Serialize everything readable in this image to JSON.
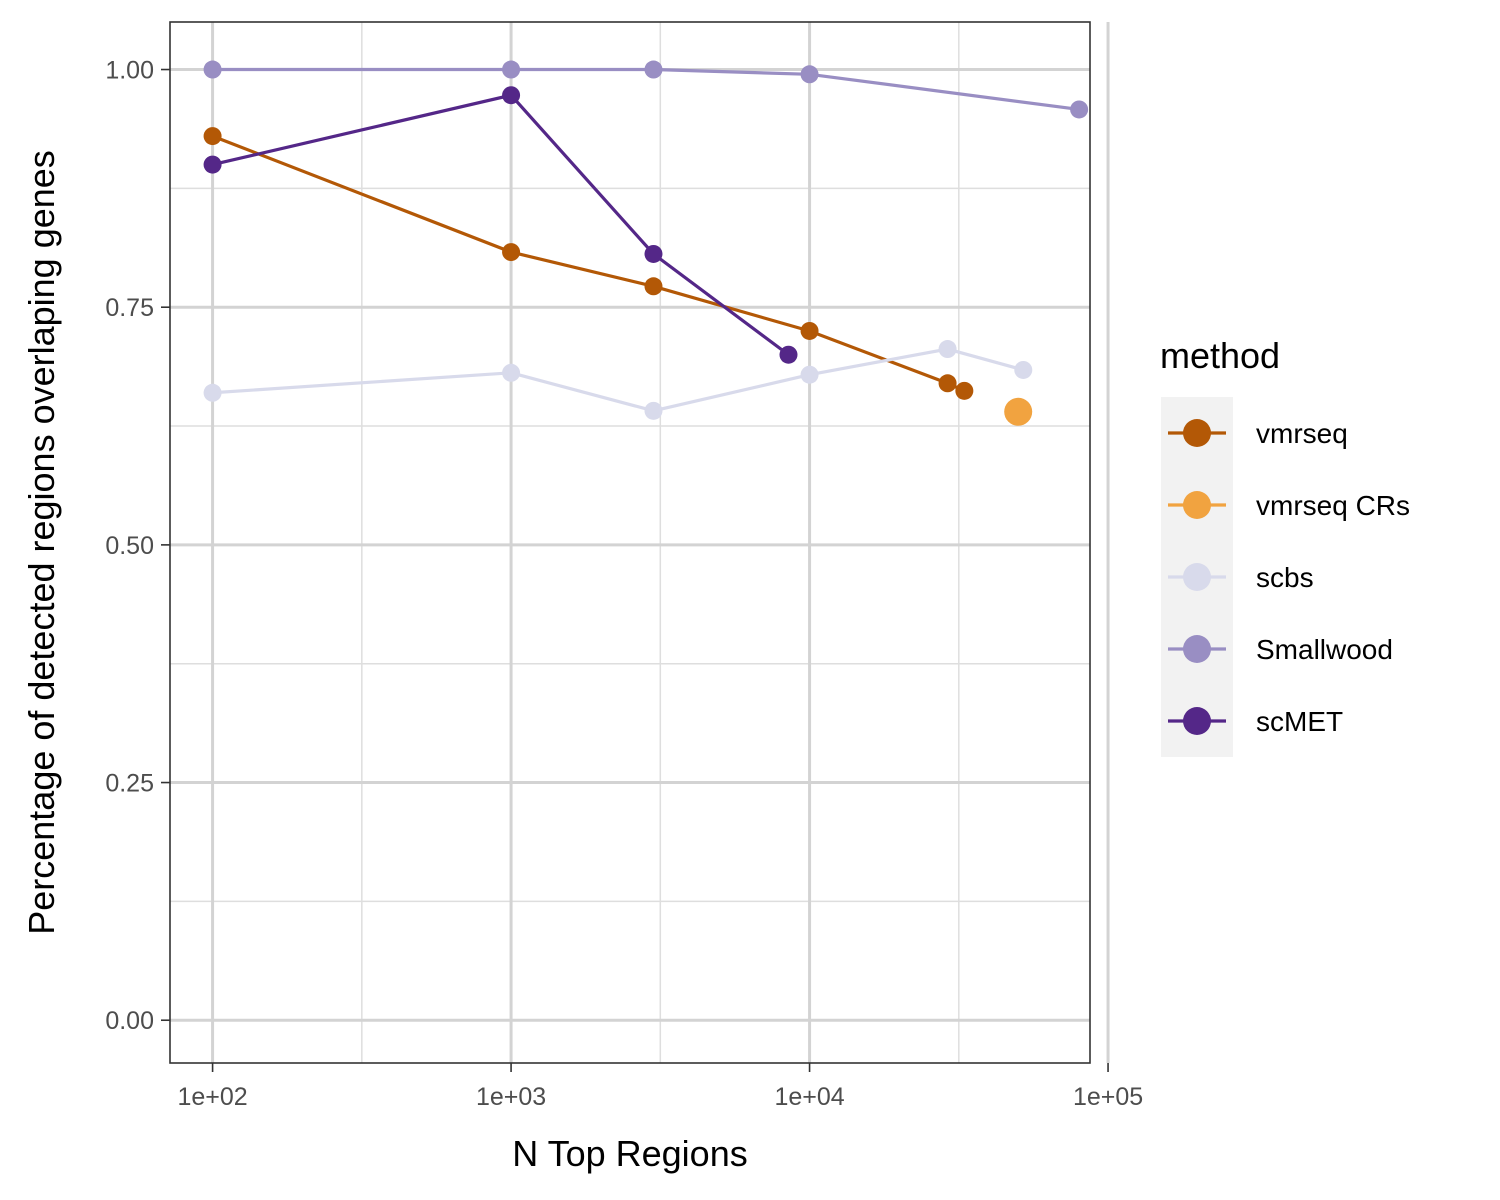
{
  "chart_data": {
    "type": "line",
    "xlabel": "N Top Regions",
    "ylabel": "Percentage of detected regions overlaping genes",
    "xscale": "log10",
    "xlim": [
      72,
      87000
    ],
    "ylim": [
      -0.045,
      1.05
    ],
    "x_ticks": [
      {
        "value": 100,
        "label": "1e+02"
      },
      {
        "value": 1000,
        "label": "1e+03"
      },
      {
        "value": 10000,
        "label": "1e+04"
      },
      {
        "value": 100000,
        "label": "1e+05"
      }
    ],
    "y_ticks": [
      {
        "value": 0.0,
        "label": "0.00"
      },
      {
        "value": 0.25,
        "label": "0.25"
      },
      {
        "value": 0.5,
        "label": "0.50"
      },
      {
        "value": 0.75,
        "label": "0.75"
      },
      {
        "value": 1.0,
        "label": "1.00"
      }
    ],
    "x_minor_ticks": [
      316.23,
      3162.28,
      31622.78
    ],
    "y_minor_ticks": [
      0.125,
      0.375,
      0.625,
      0.875
    ],
    "grid": true,
    "legend_position": "right",
    "legend_title": "method",
    "series": [
      {
        "name": "vmrseq",
        "color": "#b35806",
        "points": [
          [
            100,
            0.93
          ],
          [
            1000,
            0.808
          ],
          [
            3000,
            0.772
          ],
          [
            10000,
            0.725
          ],
          [
            29000,
            0.67
          ],
          [
            33000,
            0.662
          ]
        ]
      },
      {
        "name": "vmrseq CRs",
        "color": "#f1a340",
        "points": [
          [
            50000,
            0.64
          ]
        ],
        "large_marker": true
      },
      {
        "name": "scbs",
        "color": "#d8daeb",
        "points": [
          [
            100,
            0.66
          ],
          [
            1000,
            0.681
          ],
          [
            3000,
            0.641
          ],
          [
            10000,
            0.679
          ],
          [
            29000,
            0.706
          ],
          [
            52000,
            0.684
          ]
        ]
      },
      {
        "name": "Smallwood",
        "color": "#998ec3",
        "points": [
          [
            100,
            1.0
          ],
          [
            1000,
            1.0
          ],
          [
            3000,
            1.0
          ],
          [
            10000,
            0.995
          ],
          [
            80000,
            0.958
          ]
        ]
      },
      {
        "name": "scMET",
        "color": "#542788",
        "points": [
          [
            100,
            0.9
          ],
          [
            1000,
            0.973
          ],
          [
            3000,
            0.806
          ],
          [
            8500,
            0.7
          ]
        ]
      }
    ]
  }
}
